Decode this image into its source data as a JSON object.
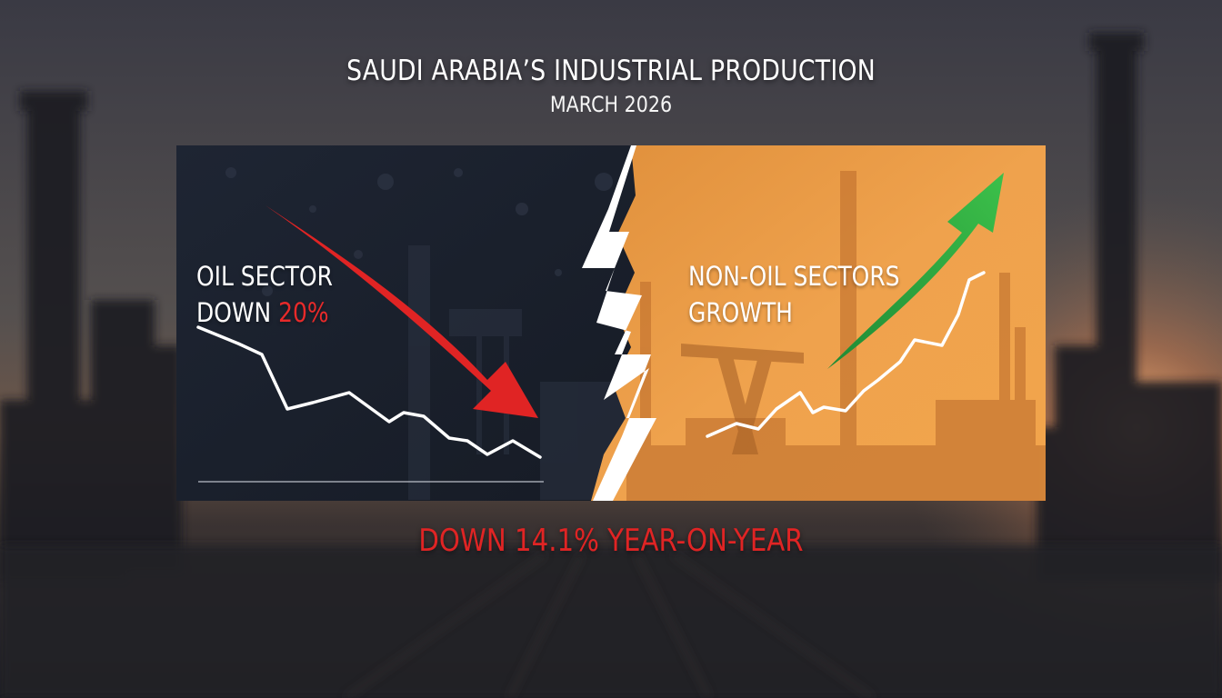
{
  "header": {
    "title": "SAUDI ARABIA’S INDUSTRIAL PRODUCTION",
    "subtitle": "MARCH 2026"
  },
  "left_panel": {
    "line1": "OIL SECTOR",
    "line2_prefix": "DOWN ",
    "line2_highlight": "20%"
  },
  "right_panel": {
    "line1": "NON-OIL SECTORS",
    "line2": "GROWTH"
  },
  "footer": {
    "headline": "DOWN 14.1% YEAR-ON-YEAR"
  },
  "colors": {
    "oil_panel": "#1b2230",
    "nonoil_panel": "#e79a3c",
    "down_red": "#e02424",
    "up_green": "#2aa83a"
  },
  "icons": [
    "down-arrow-icon",
    "up-arrow-icon",
    "lightning-bolt-icon"
  ]
}
